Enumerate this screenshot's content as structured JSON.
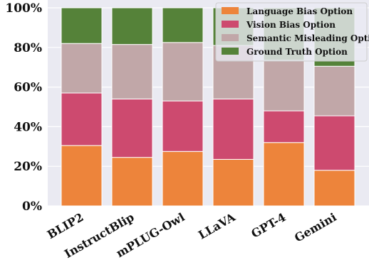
{
  "chart_data": {
    "type": "bar",
    "stacked": true,
    "categories": [
      "BLIP2",
      "InstructBlip",
      "mPLUG-Owl",
      "LLaVA",
      "GPT-4",
      "Gemini"
    ],
    "series": [
      {
        "name": "Language Bias Option",
        "color": "#ED843B",
        "values": [
          30.5,
          24.5,
          27.5,
          23.5,
          32,
          18
        ]
      },
      {
        "name": "Vision Bias Option",
        "color": "#CD4A6F",
        "values": [
          26.5,
          29.5,
          25.5,
          30.5,
          16,
          27.5
        ]
      },
      {
        "name": "Semantic Misleading Option",
        "color": "#C1A7A8",
        "values": [
          25,
          27.5,
          29.5,
          27,
          25.5,
          25
        ]
      },
      {
        "name": "Ground Truth Option",
        "color": "#558239",
        "values": [
          18,
          18.5,
          17.5,
          19,
          26.5,
          29.5
        ]
      }
    ],
    "ylim": [
      0,
      100
    ],
    "yticks": [
      "0%",
      "20%",
      "40%",
      "60%",
      "80%",
      "100%"
    ],
    "xlabel": "",
    "ylabel": "",
    "title": "",
    "grid": true,
    "legend_position": "top-right",
    "background": "#EAEAF2"
  }
}
